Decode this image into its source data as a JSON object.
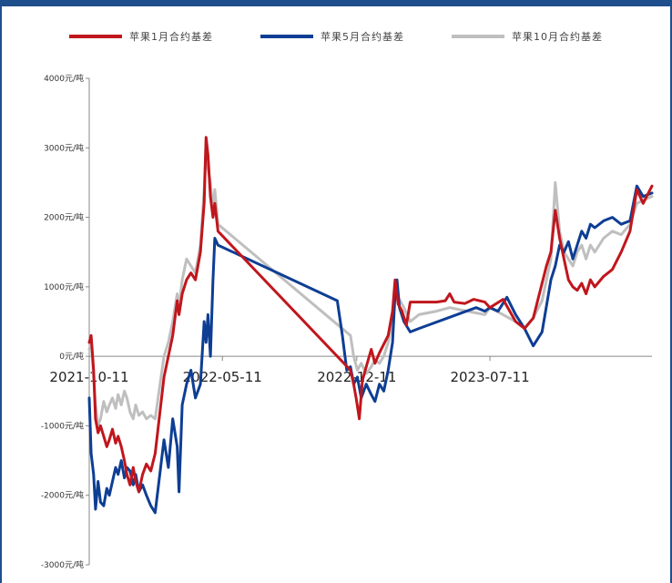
{
  "chart_data": {
    "type": "line",
    "title": "",
    "xlabel": "",
    "ylabel": "",
    "colors": {
      "red": "#c0161d",
      "blue": "#0e3e94",
      "gray": "#bfbfbf",
      "axis": "#888888",
      "frame": "#1f4e8c"
    },
    "x_ticks": [
      "2021-10-11",
      "2022-05-11",
      "2022-12-11",
      "2023-07-11"
    ],
    "y_ticks": [
      "4000元/吨",
      "3000元/吨",
      "2000元/吨",
      "1000元/吨",
      "0元/吨",
      "-1000元/吨",
      "-2000元/吨",
      "-3000元/吨"
    ],
    "y_tick_values": [
      4000,
      3000,
      2000,
      1000,
      0,
      -1000,
      -2000,
      -3000
    ],
    "ylim": [
      -3000,
      4000
    ],
    "xlim": [
      "2021-10-11",
      "2024-03-25"
    ],
    "legend_position": "top",
    "series": [
      {
        "name": "苹果1月合约基差",
        "color": "#c0161d",
        "points": [
          [
            "2021-10-11",
            200
          ],
          [
            "2021-10-14",
            300
          ],
          [
            "2021-10-18",
            -200
          ],
          [
            "2021-10-21",
            -900
          ],
          [
            "2021-10-25",
            -1100
          ],
          [
            "2021-10-29",
            -1000
          ],
          [
            "2021-11-03",
            -1150
          ],
          [
            "2021-11-08",
            -1300
          ],
          [
            "2021-11-12",
            -1200
          ],
          [
            "2021-11-17",
            -1050
          ],
          [
            "2021-11-22",
            -1250
          ],
          [
            "2021-11-26",
            -1150
          ],
          [
            "2021-12-01",
            -1300
          ],
          [
            "2021-12-06",
            -1500
          ],
          [
            "2021-12-10",
            -1700
          ],
          [
            "2021-12-15",
            -1850
          ],
          [
            "2021-12-20",
            -1600
          ],
          [
            "2021-12-24",
            -1800
          ],
          [
            "2021-12-29",
            -1950
          ],
          [
            "2022-01-04",
            -1700
          ],
          [
            "2022-01-10",
            -1550
          ],
          [
            "2022-01-17",
            -1650
          ],
          [
            "2022-01-24",
            -1400
          ],
          [
            "2022-02-07",
            -300
          ],
          [
            "2022-02-14",
            0
          ],
          [
            "2022-02-21",
            300
          ],
          [
            "2022-02-28",
            800
          ],
          [
            "2022-03-03",
            600
          ],
          [
            "2022-03-08",
            900
          ],
          [
            "2022-03-15",
            1100
          ],
          [
            "2022-03-22",
            1200
          ],
          [
            "2022-03-29",
            1100
          ],
          [
            "2022-04-06",
            1500
          ],
          [
            "2022-04-12",
            2200
          ],
          [
            "2022-04-15",
            3150
          ],
          [
            "2022-04-18",
            2900
          ],
          [
            "2022-04-22",
            2300
          ],
          [
            "2022-04-26",
            2000
          ],
          [
            "2022-04-29",
            2200
          ],
          [
            "2022-05-04",
            1800
          ],
          [
            "2022-12-01",
            -200
          ],
          [
            "2022-12-06",
            -400
          ],
          [
            "2022-12-10",
            -600
          ],
          [
            "2022-12-15",
            -900
          ],
          [
            "2022-12-20",
            -350
          ],
          [
            "2022-12-26",
            -150
          ],
          [
            "2023-01-03",
            100
          ],
          [
            "2023-01-09",
            -100
          ],
          [
            "2023-01-16",
            50
          ],
          [
            "2023-01-30",
            300
          ],
          [
            "2023-02-06",
            650
          ],
          [
            "2023-02-10",
            1100
          ],
          [
            "2023-02-15",
            750
          ],
          [
            "2023-02-21",
            650
          ],
          [
            "2023-02-28",
            450
          ],
          [
            "2023-03-06",
            780
          ],
          [
            "2023-04-17",
            780
          ],
          [
            "2023-05-01",
            800
          ],
          [
            "2023-05-08",
            900
          ],
          [
            "2023-05-15",
            780
          ],
          [
            "2023-06-01",
            760
          ],
          [
            "2023-06-15",
            820
          ],
          [
            "2023-07-03",
            780
          ],
          [
            "2023-07-11",
            700
          ],
          [
            "2023-08-01",
            820
          ],
          [
            "2023-08-21",
            500
          ],
          [
            "2023-09-04",
            400
          ],
          [
            "2023-09-18",
            550
          ],
          [
            "2023-10-09",
            1300
          ],
          [
            "2023-10-16",
            1500
          ],
          [
            "2023-10-23",
            2100
          ],
          [
            "2023-10-30",
            1700
          ],
          [
            "2023-11-06",
            1400
          ],
          [
            "2023-11-13",
            1100
          ],
          [
            "2023-11-20",
            1000
          ],
          [
            "2023-11-27",
            950
          ],
          [
            "2023-12-04",
            1050
          ],
          [
            "2023-12-11",
            900
          ],
          [
            "2023-12-18",
            1100
          ],
          [
            "2023-12-25",
            1000
          ],
          [
            "2024-01-08",
            1150
          ],
          [
            "2024-01-22",
            1250
          ],
          [
            "2024-02-05",
            1500
          ],
          [
            "2024-02-19",
            1800
          ],
          [
            "2024-03-01",
            2400
          ],
          [
            "2024-03-11",
            2200
          ],
          [
            "2024-03-25",
            2450
          ]
        ]
      },
      {
        "name": "苹果5月合约基差",
        "color": "#0e3e94",
        "points": [
          [
            "2021-10-11",
            -600
          ],
          [
            "2021-10-14",
            -1400
          ],
          [
            "2021-10-18",
            -1700
          ],
          [
            "2021-10-21",
            -2200
          ],
          [
            "2021-10-25",
            -1800
          ],
          [
            "2021-10-29",
            -2100
          ],
          [
            "2021-11-03",
            -2150
          ],
          [
            "2021-11-08",
            -1900
          ],
          [
            "2021-11-12",
            -2000
          ],
          [
            "2021-11-17",
            -1800
          ],
          [
            "2021-11-22",
            -1600
          ],
          [
            "2021-11-26",
            -1700
          ],
          [
            "2021-12-01",
            -1500
          ],
          [
            "2021-12-06",
            -1750
          ],
          [
            "2021-12-10",
            -1600
          ],
          [
            "2021-12-15",
            -1650
          ],
          [
            "2021-12-20",
            -1850
          ],
          [
            "2021-12-24",
            -1700
          ],
          [
            "2021-12-29",
            -1950
          ],
          [
            "2022-01-04",
            -1850
          ],
          [
            "2022-01-10",
            -2000
          ],
          [
            "2022-01-17",
            -2150
          ],
          [
            "2022-01-24",
            -2250
          ],
          [
            "2022-02-07",
            -1200
          ],
          [
            "2022-02-14",
            -1600
          ],
          [
            "2022-02-21",
            -900
          ],
          [
            "2022-02-28",
            -1300
          ],
          [
            "2022-03-03",
            -1950
          ],
          [
            "2022-03-08",
            -700
          ],
          [
            "2022-03-15",
            -400
          ],
          [
            "2022-03-22",
            -200
          ],
          [
            "2022-03-29",
            -600
          ],
          [
            "2022-04-06",
            -400
          ],
          [
            "2022-04-12",
            500
          ],
          [
            "2022-04-15",
            200
          ],
          [
            "2022-04-18",
            600
          ],
          [
            "2022-04-22",
            0
          ],
          [
            "2022-04-26",
            1100
          ],
          [
            "2022-04-29",
            1700
          ],
          [
            "2022-05-04",
            1600
          ],
          [
            "2022-11-10",
            800
          ],
          [
            "2022-11-18",
            300
          ],
          [
            "2022-11-25",
            -200
          ],
          [
            "2022-12-01",
            -150
          ],
          [
            "2022-12-06",
            -400
          ],
          [
            "2022-12-12",
            -300
          ],
          [
            "2022-12-18",
            -600
          ],
          [
            "2022-12-26",
            -400
          ],
          [
            "2023-01-03",
            -550
          ],
          [
            "2023-01-09",
            -650
          ],
          [
            "2023-01-16",
            -400
          ],
          [
            "2023-01-23",
            -500
          ],
          [
            "2023-01-30",
            -200
          ],
          [
            "2023-02-06",
            200
          ],
          [
            "2023-02-10",
            900
          ],
          [
            "2023-02-13",
            1100
          ],
          [
            "2023-02-17",
            700
          ],
          [
            "2023-02-24",
            500
          ],
          [
            "2023-03-06",
            350
          ],
          [
            "2023-03-20",
            400
          ],
          [
            "2023-06-19",
            700
          ],
          [
            "2023-07-03",
            650
          ],
          [
            "2023-07-11",
            700
          ],
          [
            "2023-07-24",
            650
          ],
          [
            "2023-08-07",
            850
          ],
          [
            "2023-08-21",
            600
          ],
          [
            "2023-09-04",
            400
          ],
          [
            "2023-09-18",
            150
          ],
          [
            "2023-10-02",
            350
          ],
          [
            "2023-10-16",
            1100
          ],
          [
            "2023-10-23",
            1300
          ],
          [
            "2023-10-30",
            1600
          ],
          [
            "2023-11-06",
            1500
          ],
          [
            "2023-11-13",
            1650
          ],
          [
            "2023-11-20",
            1400
          ],
          [
            "2023-11-27",
            1600
          ],
          [
            "2023-12-04",
            1800
          ],
          [
            "2023-12-11",
            1700
          ],
          [
            "2023-12-18",
            1900
          ],
          [
            "2023-12-25",
            1850
          ],
          [
            "2024-01-08",
            1950
          ],
          [
            "2024-01-22",
            2000
          ],
          [
            "2024-02-05",
            1900
          ],
          [
            "2024-02-19",
            1950
          ],
          [
            "2024-03-01",
            2450
          ],
          [
            "2024-03-11",
            2300
          ],
          [
            "2024-03-25",
            2350
          ]
        ]
      },
      {
        "name": "苹果10月合约基差",
        "color": "#bfbfbf",
        "points": [
          [
            "2021-10-11",
            100
          ],
          [
            "2021-10-14",
            200
          ],
          [
            "2021-10-18",
            -300
          ],
          [
            "2021-10-21",
            -700
          ],
          [
            "2021-10-25",
            -1000
          ],
          [
            "2021-10-29",
            -900
          ],
          [
            "2021-11-03",
            -650
          ],
          [
            "2021-11-08",
            -800
          ],
          [
            "2021-11-12",
            -700
          ],
          [
            "2021-11-17",
            -600
          ],
          [
            "2021-11-22",
            -750
          ],
          [
            "2021-11-26",
            -550
          ],
          [
            "2021-12-01",
            -700
          ],
          [
            "2021-12-06",
            -500
          ],
          [
            "2021-12-10",
            -600
          ],
          [
            "2021-12-15",
            -800
          ],
          [
            "2021-12-20",
            -900
          ],
          [
            "2021-12-24",
            -700
          ],
          [
            "2021-12-29",
            -850
          ],
          [
            "2022-01-04",
            -800
          ],
          [
            "2022-01-10",
            -900
          ],
          [
            "2022-01-17",
            -850
          ],
          [
            "2022-01-24",
            -900
          ],
          [
            "2022-02-07",
            0
          ],
          [
            "2022-02-14",
            200
          ],
          [
            "2022-02-21",
            500
          ],
          [
            "2022-02-28",
            900
          ],
          [
            "2022-03-03",
            700
          ],
          [
            "2022-03-08",
            1100
          ],
          [
            "2022-03-15",
            1400
          ],
          [
            "2022-03-22",
            1300
          ],
          [
            "2022-03-29",
            1200
          ],
          [
            "2022-04-06",
            1600
          ],
          [
            "2022-04-12",
            2400
          ],
          [
            "2022-04-15",
            3100
          ],
          [
            "2022-04-18",
            2700
          ],
          [
            "2022-04-22",
            2500
          ],
          [
            "2022-04-26",
            2100
          ],
          [
            "2022-04-29",
            2400
          ],
          [
            "2022-05-04",
            1900
          ],
          [
            "2022-12-01",
            300
          ],
          [
            "2022-12-06",
            0
          ],
          [
            "2022-12-12",
            -200
          ],
          [
            "2022-12-18",
            -100
          ],
          [
            "2022-12-26",
            -250
          ],
          [
            "2023-01-03",
            -150
          ],
          [
            "2023-01-09",
            -50
          ],
          [
            "2023-01-16",
            -100
          ],
          [
            "2023-01-23",
            0
          ],
          [
            "2023-01-30",
            200
          ],
          [
            "2023-02-06",
            500
          ],
          [
            "2023-02-10",
            900
          ],
          [
            "2023-02-15",
            850
          ],
          [
            "2023-02-24",
            700
          ],
          [
            "2023-03-06",
            500
          ],
          [
            "2023-03-20",
            600
          ],
          [
            "2023-04-17",
            650
          ],
          [
            "2023-05-08",
            700
          ],
          [
            "2023-06-05",
            650
          ],
          [
            "2023-07-03",
            600
          ],
          [
            "2023-07-11",
            700
          ],
          [
            "2023-08-01",
            600
          ],
          [
            "2023-08-21",
            500
          ],
          [
            "2023-09-04",
            400
          ],
          [
            "2023-09-18",
            550
          ],
          [
            "2023-10-02",
            800
          ],
          [
            "2023-10-16",
            1400
          ],
          [
            "2023-10-23",
            2500
          ],
          [
            "2023-10-30",
            1800
          ],
          [
            "2023-11-06",
            1500
          ],
          [
            "2023-11-13",
            1400
          ],
          [
            "2023-11-20",
            1300
          ],
          [
            "2023-11-27",
            1500
          ],
          [
            "2023-12-04",
            1600
          ],
          [
            "2023-12-11",
            1400
          ],
          [
            "2023-12-18",
            1600
          ],
          [
            "2023-12-25",
            1500
          ],
          [
            "2024-01-08",
            1700
          ],
          [
            "2024-01-22",
            1800
          ],
          [
            "2024-02-05",
            1750
          ],
          [
            "2024-02-19",
            1900
          ],
          [
            "2024-03-01",
            2200
          ],
          [
            "2024-03-11",
            2250
          ],
          [
            "2024-03-25",
            2300
          ]
        ]
      }
    ]
  }
}
